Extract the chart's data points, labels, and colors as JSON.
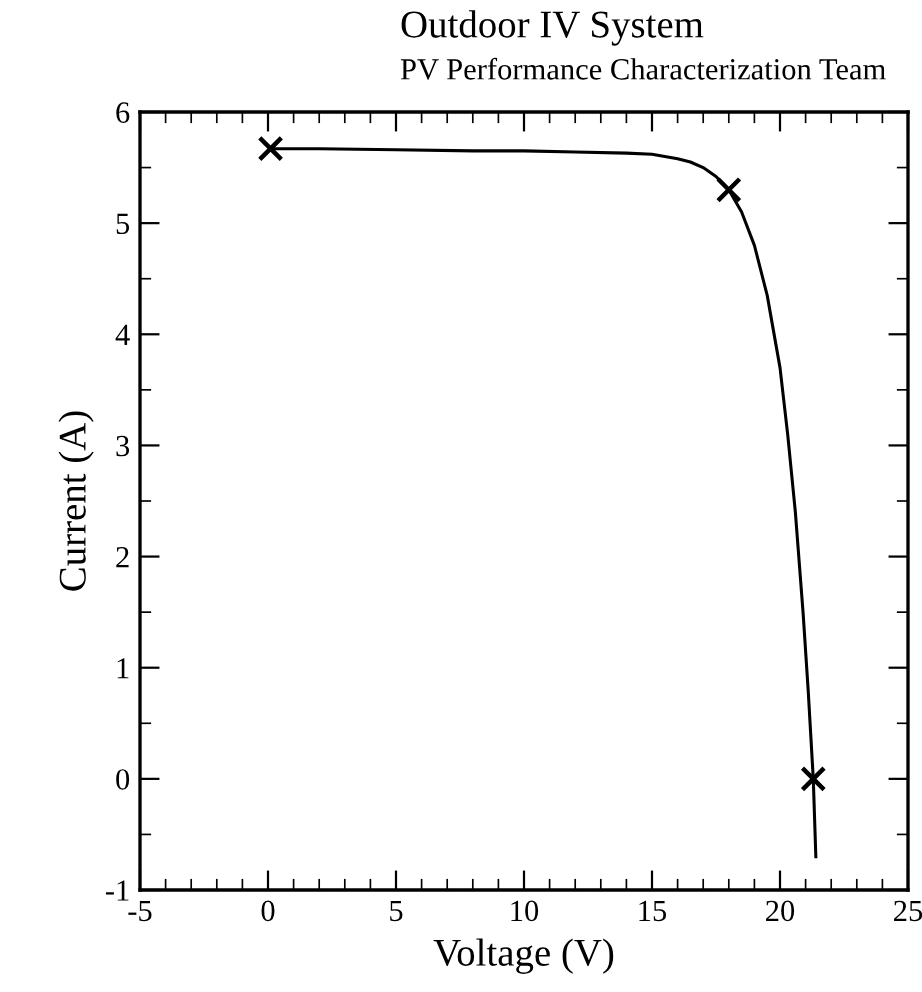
{
  "chart_data": {
    "type": "line",
    "title": "Outdoor IV System",
    "subtitle": "PV Performance Characterization Team",
    "xlabel": "Voltage (V)",
    "ylabel": "Current (A)",
    "series": [
      {
        "color": "#000000",
        "marker": "none",
        "x": [
          0.1,
          2,
          5,
          8,
          10,
          12,
          14,
          15,
          16,
          16.5,
          17,
          17.5,
          18,
          18.5,
          19,
          19.5,
          20,
          20.3,
          20.6,
          20.9,
          21.1,
          21.3,
          21.4
        ],
        "values": [
          5.67,
          5.67,
          5.66,
          5.65,
          5.65,
          5.64,
          5.63,
          5.62,
          5.58,
          5.55,
          5.5,
          5.42,
          5.3,
          5.1,
          4.8,
          4.35,
          3.7,
          3.1,
          2.4,
          1.5,
          0.8,
          0.0,
          -0.7
        ]
      },
      {
        "type": "scatter",
        "color": "#000000",
        "marker": "cross",
        "x": [
          0.1,
          18.0,
          21.3
        ],
        "values": [
          5.67,
          5.3,
          0.0
        ]
      }
    ],
    "xlim": [
      -5,
      25
    ],
    "xticks": [
      -5,
      0,
      5,
      10,
      15,
      20,
      25
    ],
    "ylim": [
      -1,
      6
    ],
    "yticks": [
      -1,
      0,
      1,
      2,
      3,
      4,
      5,
      6
    ],
    "grid": false,
    "legend": false
  }
}
